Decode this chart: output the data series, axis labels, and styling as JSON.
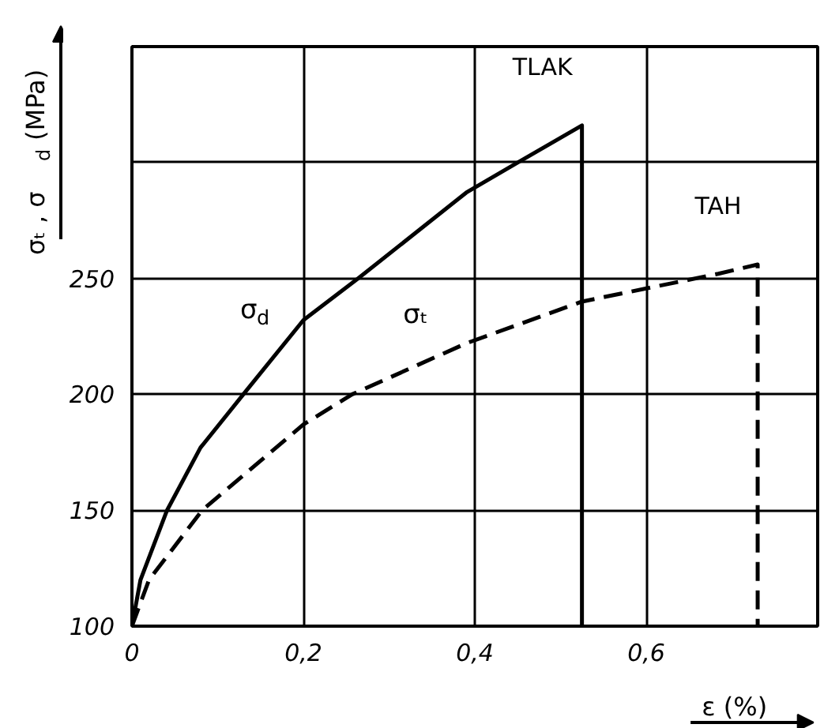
{
  "chart_data": {
    "type": "line",
    "xlabel": "ε (%)",
    "ylabel": "σₜ , σ$_{d}$ (MPa)",
    "xlim": [
      0,
      0.8
    ],
    "ylim": [
      100,
      350
    ],
    "xticks": [
      {
        "value": 0,
        "label": "0"
      },
      {
        "value": 0.2,
        "label": "0,2"
      },
      {
        "value": 0.4,
        "label": "0,4"
      },
      {
        "value": 0.6,
        "label": "0,6"
      }
    ],
    "yticks": [
      100,
      150,
      200,
      250,
      {
        "value": 300,
        "label": null
      },
      {
        "value": 350,
        "label": null
      }
    ],
    "grid": true,
    "marker": "none",
    "series": [
      {
        "name": "σ$_{d}$",
        "color": "#000000",
        "line_style": "solid",
        "x": [
          0,
          0.01,
          0.041,
          0.08,
          0.13,
          0.2,
          0.264,
          0.39,
          0.45,
          0.525,
          0.525
        ],
        "values": [
          100,
          120,
          150,
          177,
          200,
          232,
          250,
          287,
          300,
          316,
          100
        ]
      },
      {
        "name": "σₜ",
        "color": "#000000",
        "line_style": "dashed",
        "x": [
          0,
          0.02,
          0.082,
          0.2,
          0.257,
          0.39,
          0.525,
          0.684,
          0.73,
          0.73
        ],
        "values": [
          100,
          120,
          150,
          187,
          200,
          222,
          240,
          252,
          256,
          100
        ]
      }
    ],
    "annotations": [
      {
        "text": "TLAK",
        "x": 0.525,
        "y": 316
      },
      {
        "text": "TAH",
        "x": 0.73,
        "y": 256
      }
    ]
  }
}
